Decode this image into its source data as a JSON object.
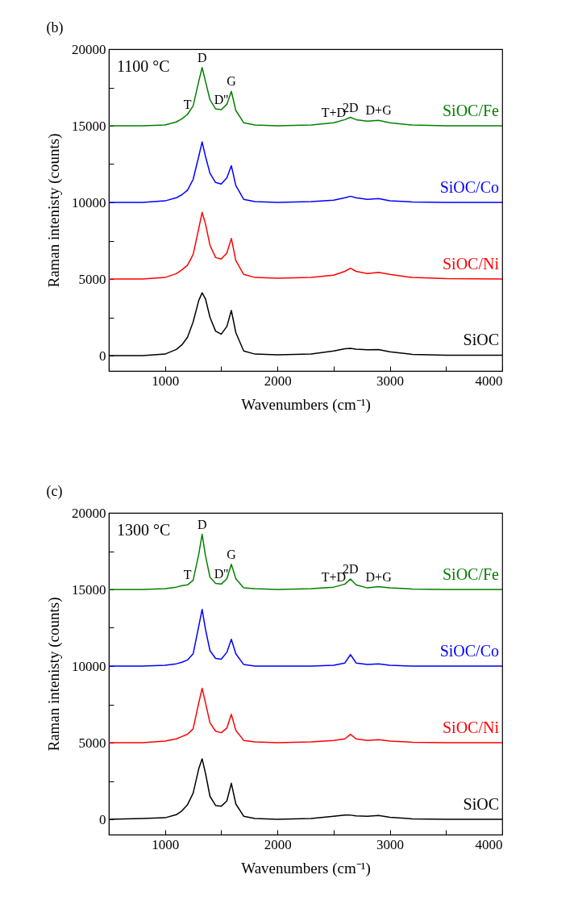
{
  "chart_data": [
    {
      "type": "line",
      "title": "(b)",
      "xlabel": "Wavenumbers (cm⁻¹)",
      "ylabel": "Raman intenisty (counts)",
      "xlim": [
        500,
        4000
      ],
      "ylim": [
        -1000,
        20000
      ],
      "xticks": [
        {
          "value": 500,
          "label": null
        },
        1000,
        {
          "value": 1500,
          "label": null
        },
        2000,
        {
          "value": 2500,
          "label": null
        },
        3000,
        {
          "value": 3500,
          "label": null
        },
        4000
      ],
      "yticks": [
        0,
        {
          "value": 2500,
          "label": null
        },
        5000,
        {
          "value": 7500,
          "label": null
        },
        10000,
        {
          "value": 12500,
          "label": null
        },
        15000,
        {
          "value": 17500,
          "label": null
        },
        20000
      ],
      "x": [
        500,
        800,
        1000,
        1100,
        1150,
        1200,
        1250,
        1300,
        1330,
        1360,
        1400,
        1450,
        1500,
        1550,
        1590,
        1630,
        1700,
        1800,
        2000,
        2300,
        2500,
        2600,
        2650,
        2700,
        2800,
        2900,
        3000,
        3200,
        3500,
        4000
      ],
      "series": [
        {
          "name": "SiOC/Fe",
          "color": "#008000",
          "values": [
            15000,
            15000,
            15050,
            15250,
            15450,
            15750,
            16300,
            17900,
            18800,
            17900,
            16700,
            16100,
            16050,
            16400,
            17250,
            16000,
            15200,
            15050,
            15000,
            15050,
            15200,
            15400,
            15550,
            15400,
            15300,
            15350,
            15200,
            15050,
            15000,
            15000
          ]
        },
        {
          "name": "SiOC/Co",
          "color": "#0000ff",
          "values": [
            10000,
            10000,
            10100,
            10300,
            10500,
            10800,
            11500,
            13000,
            13950,
            13000,
            11900,
            11300,
            11200,
            11600,
            12400,
            11100,
            10200,
            10050,
            10000,
            10050,
            10150,
            10300,
            10400,
            10300,
            10200,
            10250,
            10100,
            10030,
            10000,
            10000
          ]
        },
        {
          "name": "SiOC/Ni",
          "color": "#ff0000",
          "values": [
            5000,
            5000,
            5100,
            5350,
            5600,
            5900,
            6600,
            8300,
            9350,
            8600,
            7200,
            6400,
            6300,
            6700,
            7650,
            6200,
            5300,
            5100,
            5050,
            5100,
            5250,
            5500,
            5700,
            5500,
            5350,
            5430,
            5300,
            5100,
            5030,
            5000
          ]
        },
        {
          "name": "SiOC",
          "color": "#000000",
          "values": [
            0,
            0,
            100,
            400,
            700,
            1200,
            2200,
            3600,
            4100,
            3700,
            2500,
            1600,
            1400,
            1900,
            2950,
            1500,
            300,
            100,
            50,
            100,
            300,
            450,
            470,
            420,
            380,
            400,
            250,
            80,
            30,
            30
          ]
        }
      ],
      "annotations": [
        "1100 °C",
        {
          "text": "D",
          "x": 1330,
          "y": 18800
        },
        {
          "text": "G",
          "x": 1590,
          "y": 17250
        },
        {
          "text": "T",
          "x": 1200,
          "y": 15750
        },
        {
          "text": "D''",
          "x": 1500,
          "y": 16050
        },
        {
          "text": "T+D",
          "x": 2500,
          "y": 15200
        },
        {
          "text": "2D",
          "x": 2650,
          "y": 15550
        },
        {
          "text": "D+G",
          "x": 2900,
          "y": 15350
        }
      ]
    },
    {
      "type": "line",
      "title": "(c)",
      "xlabel": "Wavenumbers (cm⁻¹)",
      "ylabel": "Raman intenisty (counts)",
      "xlim": [
        500,
        4000
      ],
      "ylim": [
        -1000,
        20000
      ],
      "xticks": [
        {
          "value": 500,
          "label": null
        },
        1000,
        {
          "value": 1500,
          "label": null
        },
        2000,
        {
          "value": 2500,
          "label": null
        },
        3000,
        {
          "value": 3500,
          "label": null
        },
        4000
      ],
      "yticks": [
        0,
        {
          "value": 2500,
          "label": null
        },
        5000,
        {
          "value": 7500,
          "label": null
        },
        10000,
        {
          "value": 12500,
          "label": null
        },
        15000,
        {
          "value": 17500,
          "label": null
        },
        20000
      ],
      "x": [
        500,
        800,
        1000,
        1100,
        1150,
        1200,
        1250,
        1300,
        1330,
        1360,
        1400,
        1450,
        1500,
        1550,
        1590,
        1630,
        1700,
        1800,
        2000,
        2300,
        2500,
        2600,
        2650,
        2700,
        2800,
        2900,
        3000,
        3200,
        3500,
        4000
      ],
      "series": [
        {
          "name": "SiOC/Fe",
          "color": "#008000",
          "values": [
            15000,
            15000,
            15050,
            15150,
            15250,
            15300,
            15600,
            17300,
            18600,
            17200,
            15800,
            15400,
            15350,
            15700,
            16650,
            15700,
            15100,
            15050,
            15000,
            15050,
            15150,
            15350,
            15680,
            15300,
            15100,
            15180,
            15100,
            15030,
            15000,
            15000
          ]
        },
        {
          "name": "SiOC/Co",
          "color": "#0000ff",
          "values": [
            10000,
            10000,
            10050,
            10150,
            10250,
            10400,
            10800,
            12600,
            13700,
            12400,
            11000,
            10500,
            10450,
            10900,
            11750,
            10800,
            10100,
            10000,
            10000,
            10000,
            10050,
            10200,
            10750,
            10200,
            10100,
            10150,
            10050,
            10000,
            10000,
            10000
          ]
        },
        {
          "name": "SiOC/Ni",
          "color": "#ff0000",
          "values": [
            5000,
            5000,
            5100,
            5250,
            5400,
            5550,
            5900,
            7600,
            8550,
            7600,
            6300,
            5750,
            5650,
            5950,
            6850,
            5800,
            5150,
            5050,
            5000,
            5050,
            5150,
            5250,
            5550,
            5250,
            5150,
            5200,
            5100,
            5030,
            5000,
            5000
          ]
        },
        {
          "name": "SiOC",
          "color": "#000000",
          "values": [
            0,
            50,
            100,
            300,
            550,
            950,
            1700,
            3300,
            3950,
            3000,
            1500,
            900,
            850,
            1200,
            2350,
            1000,
            200,
            50,
            0,
            50,
            200,
            280,
            270,
            220,
            200,
            250,
            130,
            30,
            0,
            0
          ]
        }
      ],
      "annotations": [
        "1300 °C",
        {
          "text": "D",
          "x": 1330,
          "y": 18600
        },
        {
          "text": "G",
          "x": 1590,
          "y": 16650
        },
        {
          "text": "T",
          "x": 1200,
          "y": 15300
        },
        {
          "text": "D''",
          "x": 1500,
          "y": 15350
        },
        {
          "text": "T+D",
          "x": 2500,
          "y": 15150
        },
        {
          "text": "2D",
          "x": 2650,
          "y": 15680
        },
        {
          "text": "D+G",
          "x": 2900,
          "y": 15180
        }
      ]
    }
  ]
}
